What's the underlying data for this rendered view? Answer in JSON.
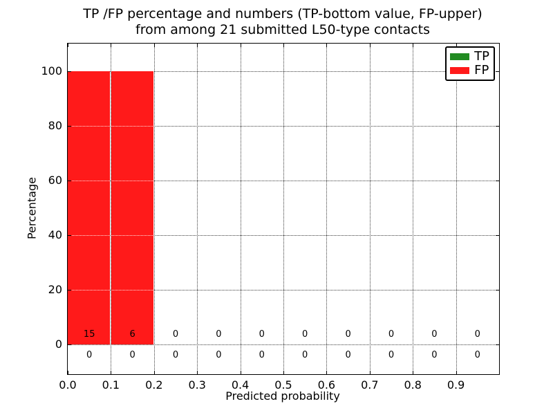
{
  "chart_data": {
    "type": "bar",
    "title_lines": [
      "TP /FP percentage and numbers (TP-bottom value, FP-upper)",
      "from among 21 submitted L50-type contacts"
    ],
    "xlabel": "Predicted probability",
    "ylabel": "Percentage",
    "xlim": [
      0.0,
      1.0
    ],
    "ylim": [
      -11,
      110
    ],
    "xtick_values": [
      0.0,
      0.1,
      0.2,
      0.3,
      0.4,
      0.5,
      0.6,
      0.7,
      0.8,
      0.9
    ],
    "xtick_labels": [
      "0.0",
      "0.1",
      "0.2",
      "0.3",
      "0.4",
      "0.5",
      "0.6",
      "0.7",
      "0.8",
      "0.9"
    ],
    "ytick_values": [
      0,
      20,
      40,
      60,
      80,
      100
    ],
    "ytick_labels": [
      "0",
      "20",
      "40",
      "60",
      "80",
      "100"
    ],
    "bin_edges": [
      0.0,
      0.1,
      0.2,
      0.3,
      0.4,
      0.5,
      0.6,
      0.7,
      0.8,
      0.9,
      1.0
    ],
    "grid": true,
    "grid_linestyle": "dotted",
    "legend_position": "upper right",
    "series": [
      {
        "name": "TP",
        "color": "#228b22",
        "percent": [
          0,
          0,
          0,
          0,
          0,
          0,
          0,
          0,
          0,
          0
        ],
        "counts": [
          0,
          0,
          0,
          0,
          0,
          0,
          0,
          0,
          0,
          0
        ],
        "count_label_y": -4.2
      },
      {
        "name": "FP",
        "color": "#ff1a1a",
        "percent": [
          100,
          100,
          0,
          0,
          0,
          0,
          0,
          0,
          0,
          0
        ],
        "counts": [
          15,
          6,
          0,
          0,
          0,
          0,
          0,
          0,
          0,
          0
        ],
        "count_label_y": 3.4
      }
    ]
  }
}
